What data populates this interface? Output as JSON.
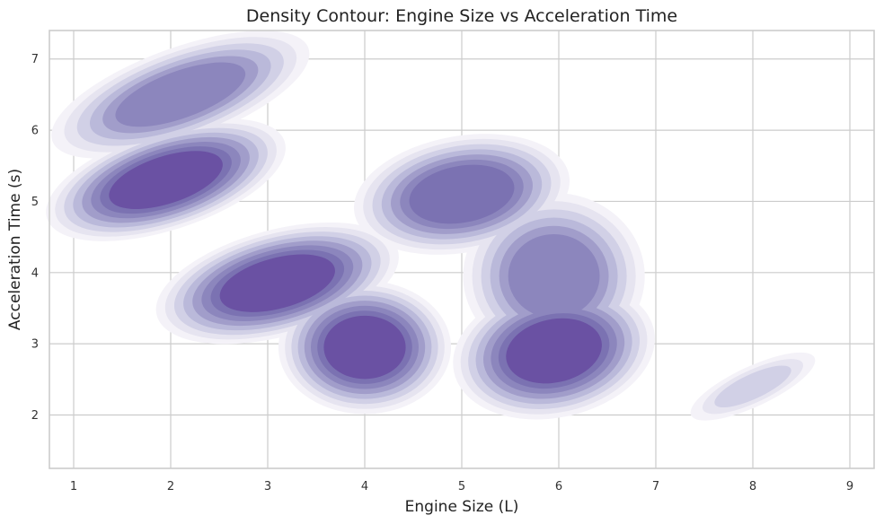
{
  "chart_data": {
    "type": "density-contour",
    "title": "Density Contour: Engine Size vs Acceleration Time",
    "xlabel": "Engine Size (L)",
    "ylabel": "Acceleration Time (s)",
    "xlim": [
      0.75,
      9.25
    ],
    "ylim": [
      1.25,
      7.4
    ],
    "xticks": [
      1,
      2,
      3,
      4,
      5,
      6,
      7,
      8,
      9
    ],
    "yticks": [
      2,
      3,
      4,
      5,
      6,
      7
    ],
    "grid": true,
    "colormap": "Purples",
    "level_colors": [
      "#f4f2f8",
      "#e6e4f0",
      "#d1d0e6",
      "#bab9da",
      "#a19dca",
      "#8c86bd",
      "#7b72b2",
      "#6a51a3"
    ],
    "density_peaks": [
      {
        "x": 2.1,
        "y": 6.5,
        "sx": 0.6,
        "sy": 0.28,
        "rot": -20,
        "weight": 0.7
      },
      {
        "x": 1.95,
        "y": 5.3,
        "sx": 0.55,
        "sy": 0.3,
        "rot": -18,
        "weight": 1.0
      },
      {
        "x": 3.1,
        "y": 3.85,
        "sx": 0.55,
        "sy": 0.32,
        "rot": -15,
        "weight": 0.95
      },
      {
        "x": 4.0,
        "y": 2.95,
        "sx": 0.38,
        "sy": 0.4,
        "rot": 0,
        "weight": 0.95
      },
      {
        "x": 5.0,
        "y": 5.1,
        "sx": 0.48,
        "sy": 0.35,
        "rot": -10,
        "weight": 0.85
      },
      {
        "x": 5.95,
        "y": 3.95,
        "sx": 0.4,
        "sy": 0.5,
        "rot": 0,
        "weight": 0.75
      },
      {
        "x": 5.95,
        "y": 2.9,
        "sx": 0.45,
        "sy": 0.4,
        "rot": -12,
        "weight": 1.0
      },
      {
        "x": 8.0,
        "y": 2.4,
        "sx": 0.3,
        "sy": 0.12,
        "rot": -25,
        "weight": 0.25
      }
    ]
  }
}
